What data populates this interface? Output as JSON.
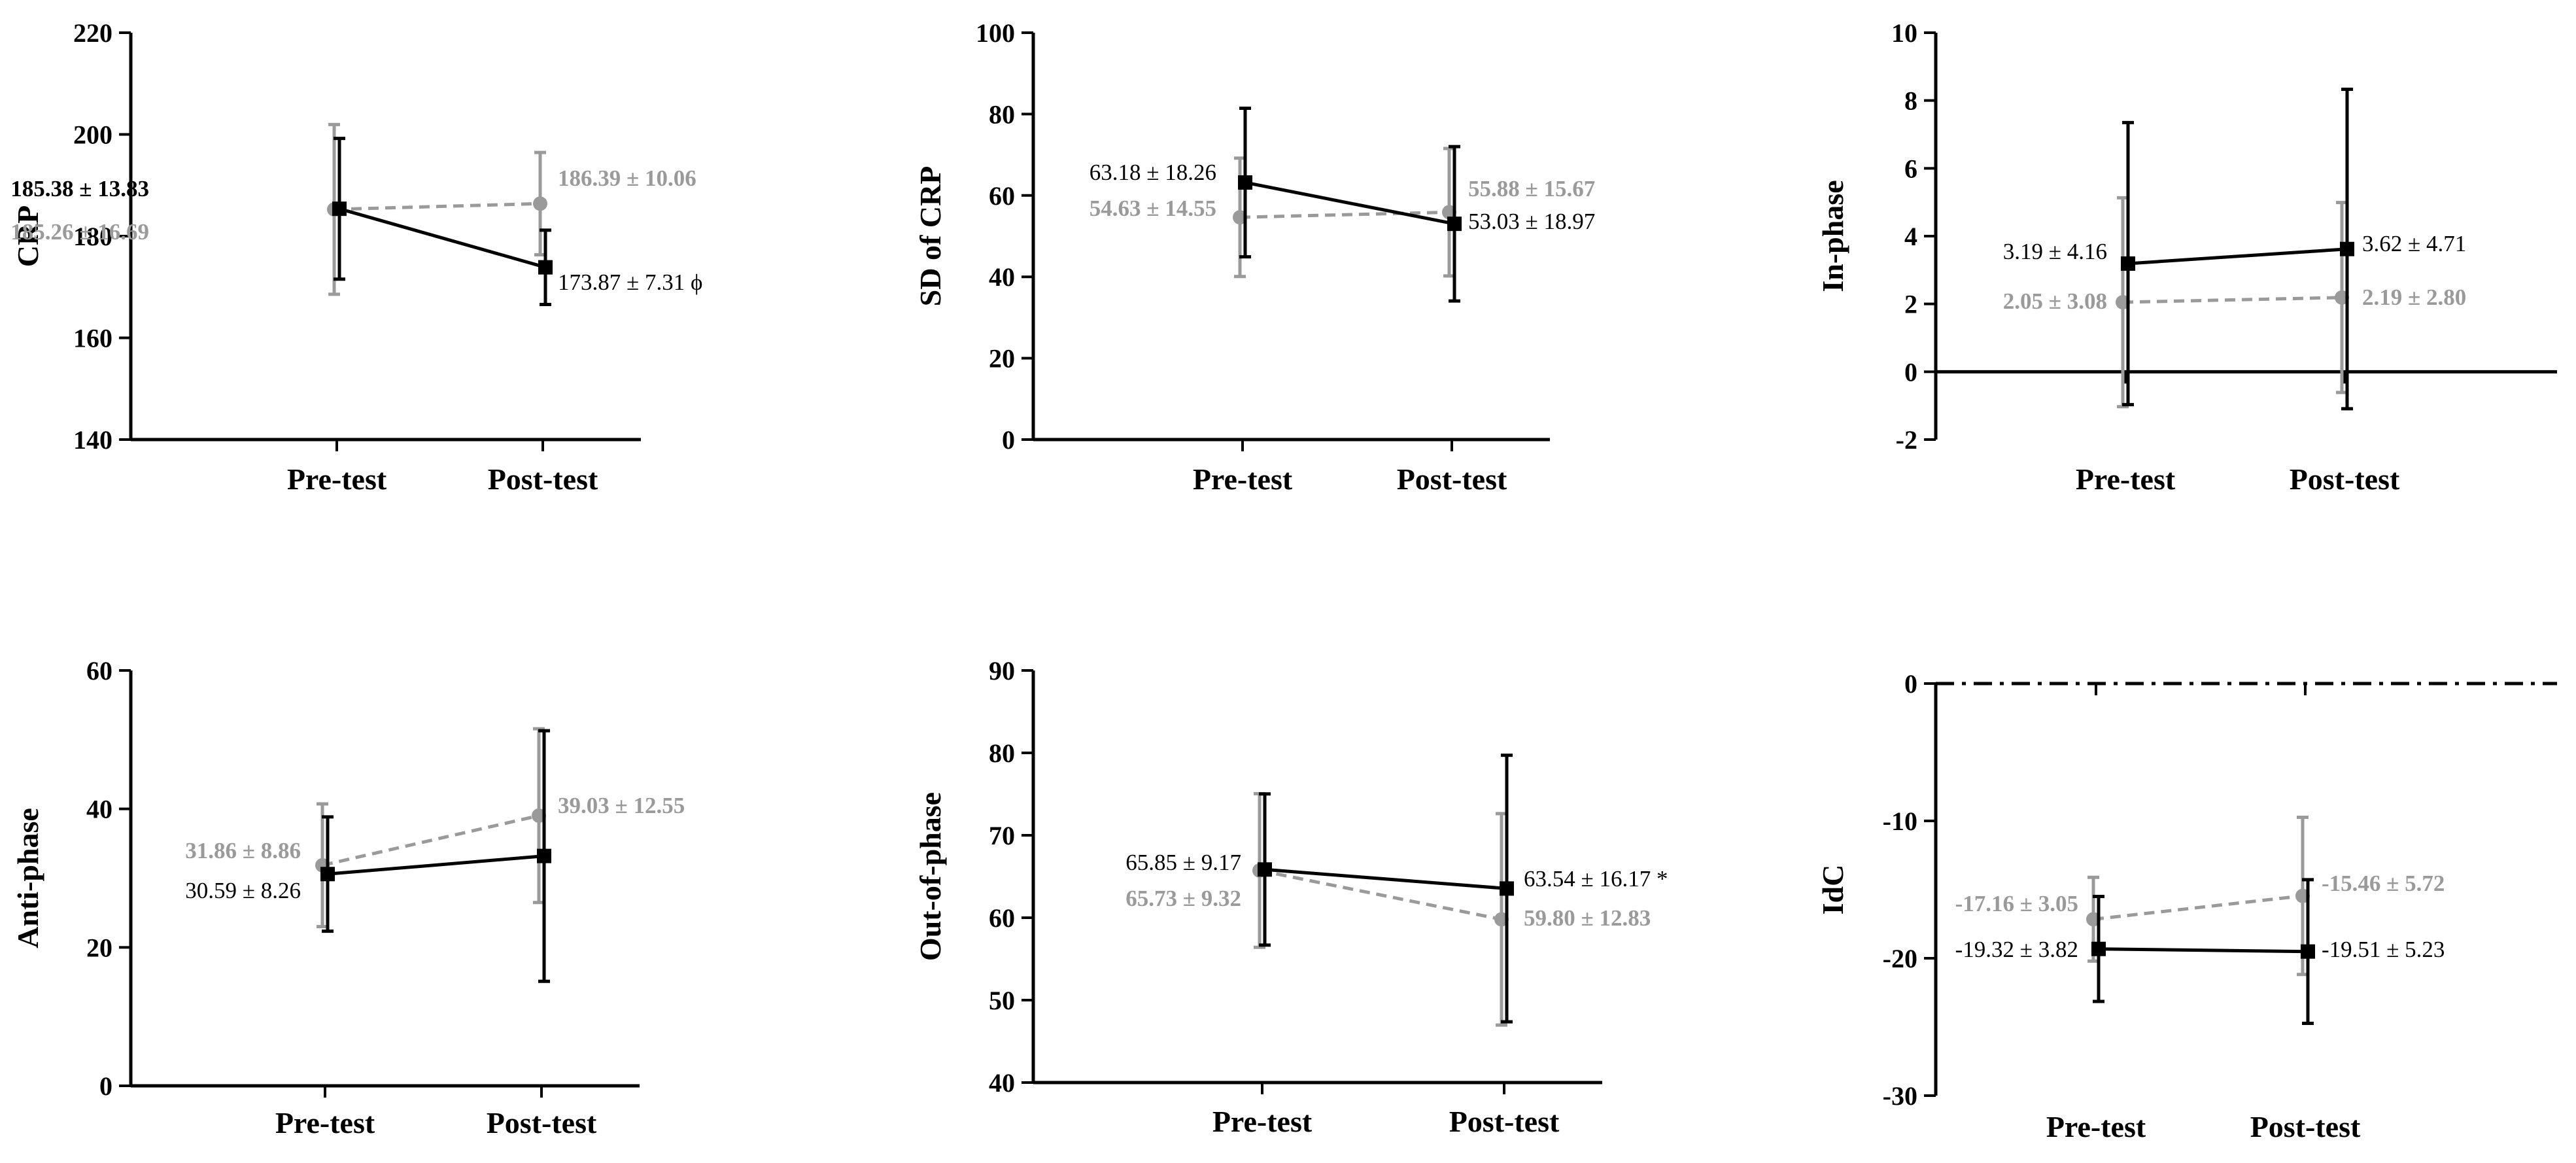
{
  "colors": {
    "black": "#000000",
    "gray": "#9a9a9a"
  },
  "chart_data": [
    {
      "type": "line",
      "ylabel": "CRP",
      "categories": [
        "Pre-test",
        "Post-test"
      ],
      "ylim": [
        140,
        220
      ],
      "yticks": [
        "140",
        "160",
        "180",
        "200",
        "220"
      ],
      "series": [
        {
          "name": "black",
          "style": "solid",
          "marker": "square",
          "values": [
            185.38,
            173.87
          ],
          "sd": [
            13.83,
            7.31
          ],
          "labels": [
            "185.38 ± 13.83",
            "173.87 ± 7.31 ϕ"
          ]
        },
        {
          "name": "gray",
          "style": "dashed",
          "marker": "circle",
          "values": [
            185.26,
            186.39
          ],
          "sd": [
            16.69,
            10.06
          ],
          "labels": [
            "185.26 ± 16.69",
            "186.39 ± 10.06"
          ]
        }
      ]
    },
    {
      "type": "line",
      "ylabel": "SD of CRP",
      "categories": [
        "Pre-test",
        "Post-test"
      ],
      "ylim": [
        0,
        100
      ],
      "yticks": [
        "0",
        "20",
        "40",
        "60",
        "80",
        "100"
      ],
      "series": [
        {
          "name": "black",
          "style": "solid",
          "marker": "square",
          "values": [
            63.18,
            53.03
          ],
          "sd": [
            18.26,
            18.97
          ],
          "labels": [
            "63.18 ± 18.26",
            "53.03 ± 18.97"
          ]
        },
        {
          "name": "gray",
          "style": "dashed",
          "marker": "circle",
          "values": [
            54.63,
            55.88
          ],
          "sd": [
            14.55,
            15.67
          ],
          "labels": [
            "54.63 ± 14.55",
            "55.88 ± 15.67"
          ]
        }
      ]
    },
    {
      "type": "line",
      "ylabel": "In-phase",
      "categories": [
        "Pre-test",
        "Post-test"
      ],
      "ylim": [
        -2,
        10
      ],
      "yticks": [
        "-2",
        "0",
        "2",
        "4",
        "6",
        "8",
        "10"
      ],
      "series": [
        {
          "name": "black",
          "style": "solid",
          "marker": "square",
          "values": [
            3.19,
            3.62
          ],
          "sd": [
            4.16,
            4.71
          ],
          "labels": [
            "3.19 ± 4.16",
            "3.62 ± 4.71"
          ]
        },
        {
          "name": "gray",
          "style": "dashed",
          "marker": "circle",
          "values": [
            2.05,
            2.19
          ],
          "sd": [
            3.08,
            2.8
          ],
          "labels": [
            "2.05 ± 3.08",
            "2.19 ± 2.80"
          ]
        }
      ]
    },
    {
      "type": "line",
      "ylabel": "Anti-phase",
      "categories": [
        "Pre-test",
        "Post-test"
      ],
      "ylim": [
        0,
        60
      ],
      "yticks": [
        "0",
        "20",
        "40",
        "60"
      ],
      "series": [
        {
          "name": "black",
          "style": "solid",
          "marker": "square",
          "values": [
            30.59,
            33.2
          ],
          "sd": [
            8.26,
            18.1
          ],
          "labels": [
            "30.59 ± 8.26",
            ""
          ]
        },
        {
          "name": "gray",
          "style": "dashed",
          "marker": "circle",
          "values": [
            31.86,
            39.03
          ],
          "sd": [
            8.86,
            12.55
          ],
          "labels": [
            "31.86 ± 8.86",
            "39.03 ± 12.55"
          ]
        }
      ]
    },
    {
      "type": "line",
      "ylabel": "Out-of-phase",
      "categories": [
        "Pre-test",
        "Post-test"
      ],
      "ylim": [
        40,
        90
      ],
      "yticks": [
        "40",
        "50",
        "60",
        "70",
        "80",
        "90"
      ],
      "series": [
        {
          "name": "black",
          "style": "solid",
          "marker": "square",
          "values": [
            65.85,
            63.54
          ],
          "sd": [
            9.17,
            16.17
          ],
          "labels": [
            "65.85 ± 9.17",
            "63.54 ± 16.17 *"
          ]
        },
        {
          "name": "gray",
          "style": "dashed",
          "marker": "circle",
          "values": [
            65.73,
            59.8
          ],
          "sd": [
            9.32,
            12.83
          ],
          "labels": [
            "65.73 ± 9.32",
            "59.80 ± 12.83"
          ]
        }
      ]
    },
    {
      "type": "line",
      "ylabel": "IdC",
      "categories": [
        "Pre-test",
        "Post-test"
      ],
      "ylim": [
        -30,
        0
      ],
      "yticks": [
        "-30",
        "-20",
        "-10",
        "0"
      ],
      "series": [
        {
          "name": "black",
          "style": "solid",
          "marker": "square",
          "values": [
            -19.32,
            -19.51
          ],
          "sd": [
            3.82,
            5.23
          ],
          "labels": [
            "-19.32 ± 3.82",
            "-19.51 ± 5.23"
          ]
        },
        {
          "name": "gray",
          "style": "dashed",
          "marker": "circle",
          "values": [
            -17.16,
            -15.46
          ],
          "sd": [
            3.05,
            5.72
          ],
          "labels": [
            "-17.16 ± 3.05",
            "-15.46 ± 5.72"
          ]
        }
      ]
    }
  ]
}
